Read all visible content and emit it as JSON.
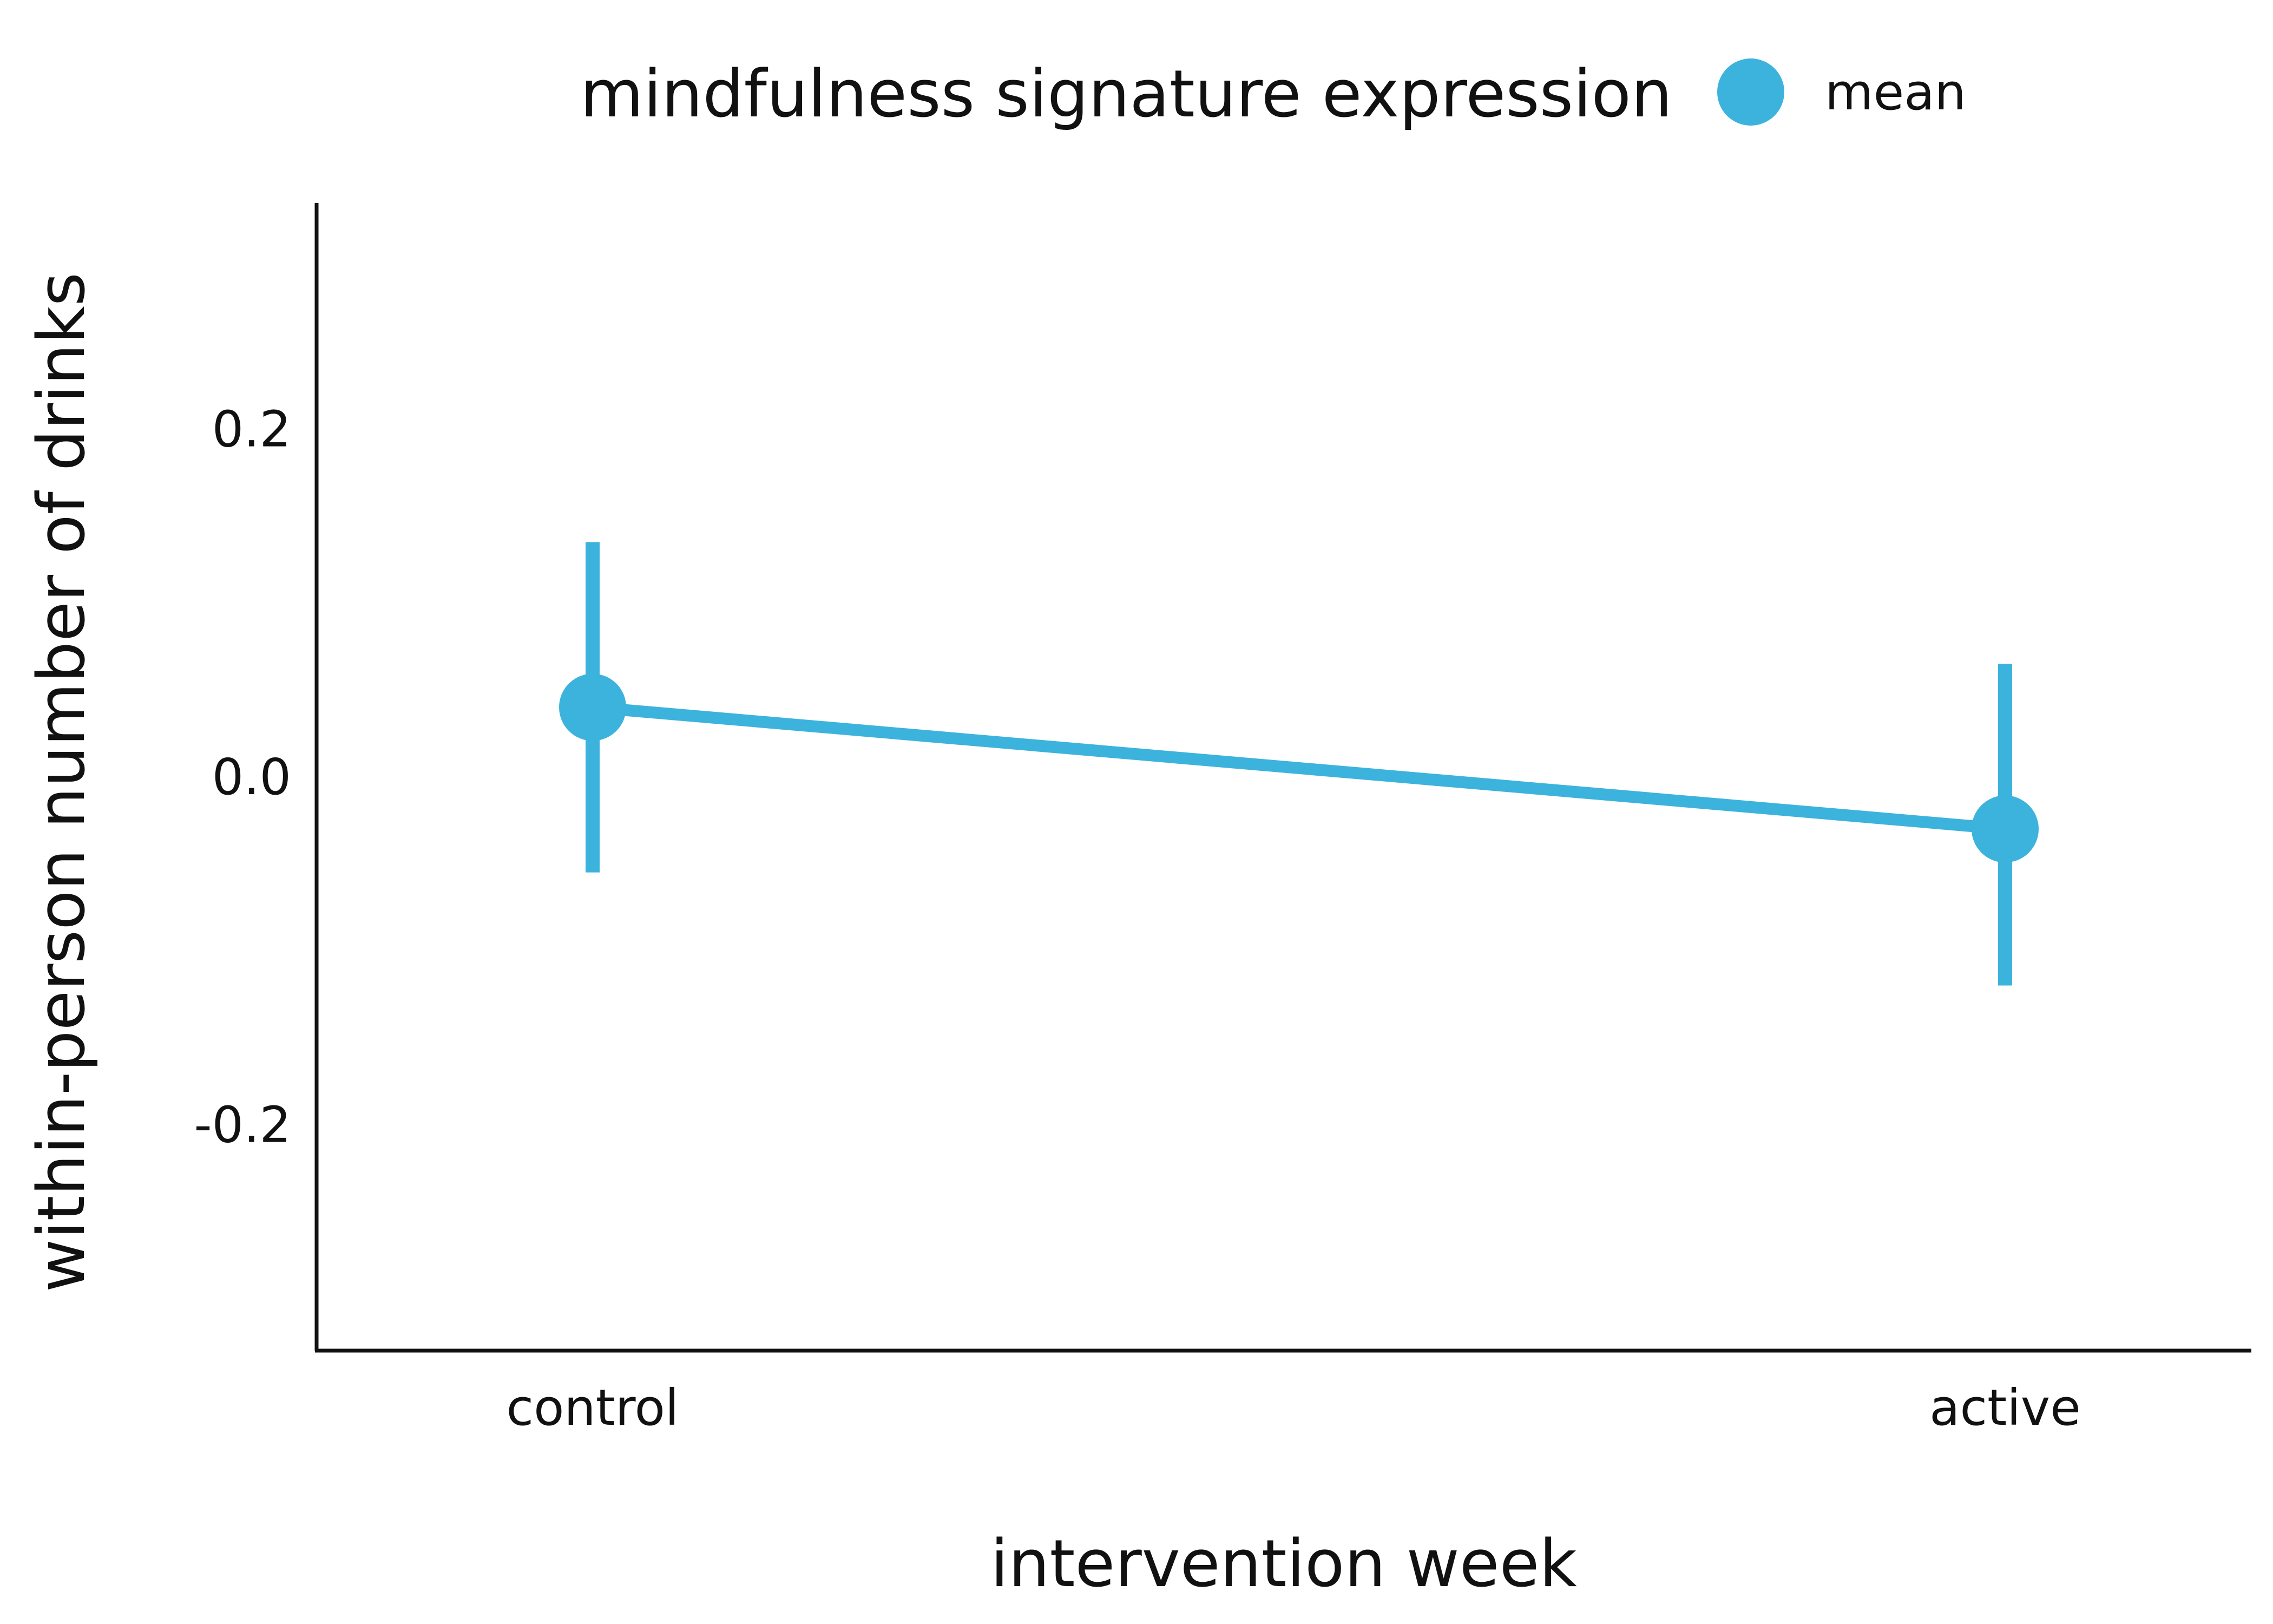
{
  "chart_data": {
    "type": "line",
    "legend_title": "mindfulness signature expression",
    "legend_position": "top",
    "categories": [
      "control",
      "active"
    ],
    "series": [
      {
        "name": "mean",
        "values": [
          0.04,
          -0.03
        ],
        "error_low": [
          -0.055,
          -0.12
        ],
        "error_high": [
          0.135,
          0.065
        ]
      }
    ],
    "xlabel": "intervention week",
    "ylabel": "within-person number of drinks",
    "yticks": [
      -0.2,
      0.0,
      0.2
    ],
    "ytick_labels": [
      "-0.2",
      "0.0",
      "0.2"
    ],
    "ylim": [
      -0.33,
      0.33
    ],
    "grid": false,
    "colors": {
      "series": "#3BB3DC",
      "axis": "#111111"
    }
  }
}
